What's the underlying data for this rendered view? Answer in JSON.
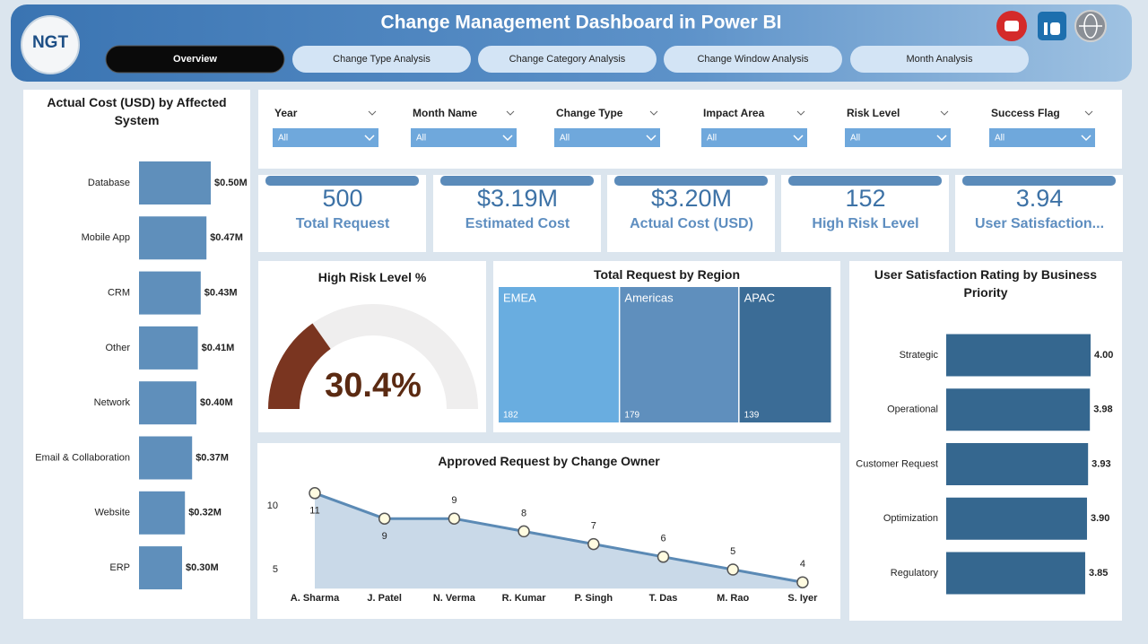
{
  "header": {
    "title": "Change Management Dashboard in Power BI",
    "logo": "NGT"
  },
  "tabs": [
    "Overview",
    "Change Type Analysis",
    "Change Category Analysis",
    "Change Window Analysis",
    "Month Analysis"
  ],
  "filters": [
    {
      "label": "Year",
      "value": "All"
    },
    {
      "label": "Month Name",
      "value": "All"
    },
    {
      "label": "Change Type",
      "value": "All"
    },
    {
      "label": "Impact Area",
      "value": "All"
    },
    {
      "label": "Risk Level",
      "value": "All"
    },
    {
      "label": "Success Flag",
      "value": "All"
    }
  ],
  "kpis": [
    {
      "value": "500",
      "label": "Total Request"
    },
    {
      "value": "$3.19M",
      "label": "Estimated Cost"
    },
    {
      "value": "$3.20M",
      "label": "Actual Cost (USD)"
    },
    {
      "value": "152",
      "label": "High Risk Level"
    },
    {
      "value": "3.94",
      "label": "User Satisfaction..."
    }
  ],
  "chart_data": [
    {
      "type": "hbar",
      "title": "Actual Cost (USD) by Affected System",
      "categories": [
        "Database",
        "Mobile App",
        "CRM",
        "Other",
        "Network",
        "Email & Collaboration",
        "Website",
        "ERP"
      ],
      "values": [
        0.5,
        0.47,
        0.43,
        0.41,
        0.4,
        0.37,
        0.32,
        0.3
      ],
      "value_labels": [
        "$0.50M",
        "$0.47M",
        "$0.43M",
        "$0.41M",
        "$0.40M",
        "$0.37M",
        "$0.32M",
        "$0.30M"
      ],
      "color": "#5f8fbb"
    },
    {
      "type": "gauge",
      "title": "High Risk Level %",
      "value": 30.4,
      "value_label": "30.4%",
      "range": [
        0,
        100
      ],
      "color": "#7a3520"
    },
    {
      "type": "treemap",
      "title": "Total Request by Region",
      "categories": [
        "EMEA",
        "Americas",
        "APAC"
      ],
      "values": [
        182,
        179,
        139
      ],
      "colors": [
        "#69ade0",
        "#5f8fbd",
        "#3b6c96"
      ]
    },
    {
      "type": "area",
      "title": "Approved Request by Change Owner",
      "categories": [
        "A. Sharma",
        "J. Patel",
        "N. Verma",
        "R. Kumar",
        "P. Singh",
        "T. Das",
        "M. Rao",
        "S. Iyer"
      ],
      "values": [
        11,
        9,
        9,
        8,
        7,
        6,
        5,
        4
      ],
      "ylim": [
        3.5,
        11.5
      ],
      "yticks": [
        5,
        10
      ],
      "color": "#5b8ab5"
    },
    {
      "type": "hbar",
      "title": "User Satisfaction Rating by Business Priority",
      "categories": [
        "Strategic",
        "Operational",
        "Customer Request",
        "Optimization",
        "Regulatory"
      ],
      "values": [
        4.0,
        3.98,
        3.93,
        3.9,
        3.85
      ],
      "value_labels": [
        "4.00",
        "3.98",
        "3.93",
        "3.90",
        "3.85"
      ],
      "color": "#35678f"
    }
  ]
}
